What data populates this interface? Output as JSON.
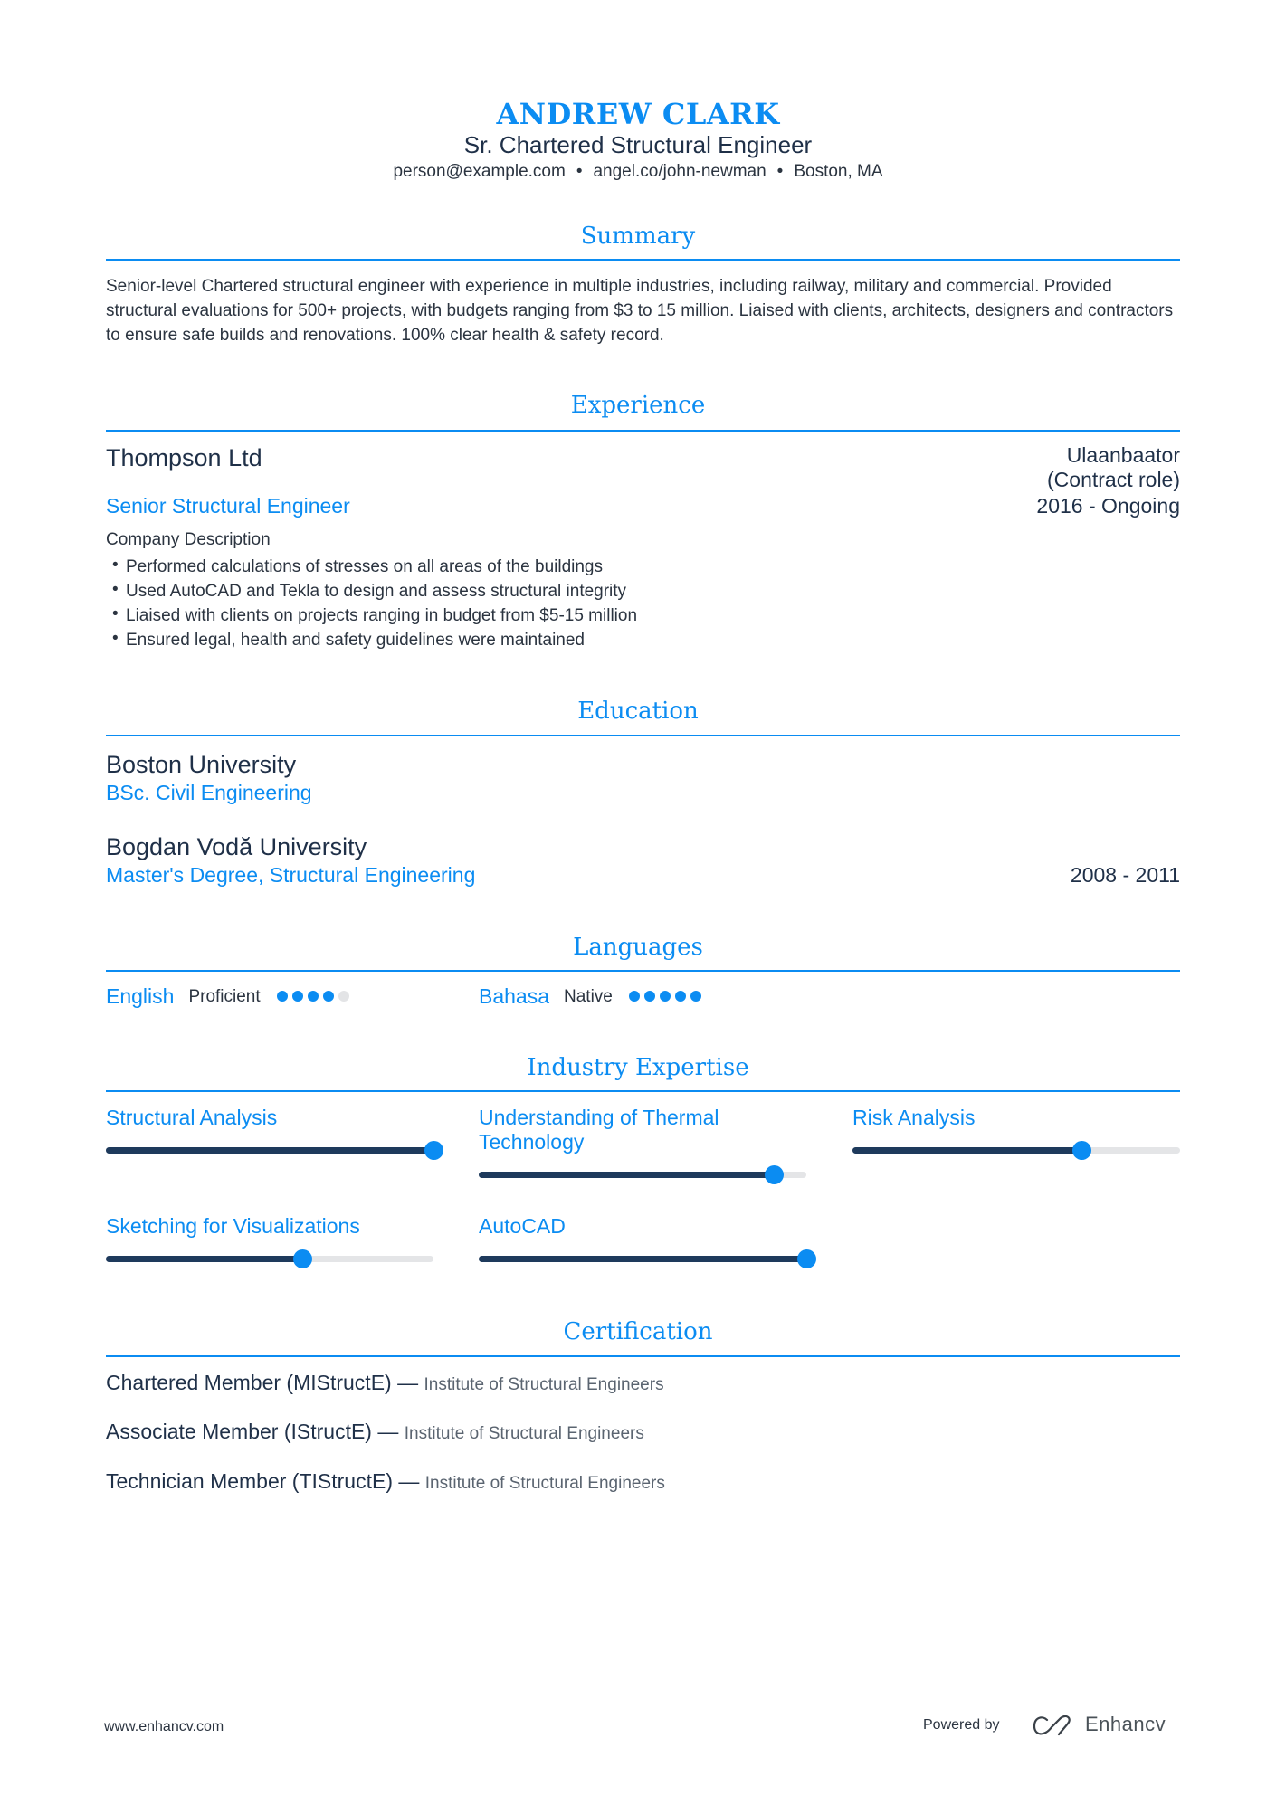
{
  "header": {
    "name": "ANDREW CLARK",
    "title": "Sr. Chartered Structural Engineer",
    "contact": [
      "person@example.com",
      "angel.co/john-newman",
      "Boston, MA"
    ],
    "separator": "•"
  },
  "summary": {
    "heading": "Summary",
    "text": "Senior-level Chartered structural engineer with experience in multiple industries, including railway, military and commercial. Provided structural evaluations for 500+ projects, with budgets ranging from $3 to 15 million. Liaised with clients, architects, designers and contractors to ensure safe builds and renovations. 100% clear health & safety record."
  },
  "experience": {
    "heading": "Experience",
    "items": [
      {
        "company": "Thompson Ltd",
        "location": "Ulaanbaator",
        "location_note": "(Contract role)",
        "role": "Senior Structural Engineer",
        "dates": "2016 - Ongoing",
        "description": "Company Description",
        "bullets": [
          "Performed calculations of stresses on all areas of the buildings",
          "Used AutoCAD and Tekla to design and assess structural integrity",
          "Liaised with clients on projects ranging in budget from $5-15 million",
          "Ensured legal, health and safety guidelines were maintained"
        ]
      }
    ]
  },
  "education": {
    "heading": "Education",
    "items": [
      {
        "school": "Boston University",
        "degree": "BSc. Civil Engineering",
        "dates": ""
      },
      {
        "school": "Bogdan Vodă University",
        "degree": "Master's Degree, Structural Engineering",
        "dates": "2008 - 2011"
      }
    ]
  },
  "languages": {
    "heading": "Languages",
    "items": [
      {
        "name": "English",
        "level": "Proficient",
        "rating": 4,
        "max": 5
      },
      {
        "name": "Bahasa",
        "level": "Native",
        "rating": 5,
        "max": 5
      }
    ]
  },
  "expertise": {
    "heading": "Industry Expertise",
    "items": [
      {
        "name": "Structural Analysis",
        "level": 1.0
      },
      {
        "name": "Understanding of Thermal Technology",
        "level": 0.9
      },
      {
        "name": "Risk Analysis",
        "level": 0.7
      },
      {
        "name": "Sketching for Visualizations",
        "level": 0.6
      },
      {
        "name": "AutoCAD",
        "level": 1.0
      }
    ]
  },
  "certification": {
    "heading": "Certification",
    "dash": "—",
    "items": [
      {
        "title": "Chartered Member (MIStructE)",
        "issuer": "Institute of Structural Engineers"
      },
      {
        "title": "Associate Member (IStructE)",
        "issuer": "Institute of Structural Engineers"
      },
      {
        "title": "Technician Member (TIStructE)",
        "issuer": "Institute of Structural Engineers"
      }
    ]
  },
  "footer": {
    "website": "www.enhancv.com",
    "powered_by": "Powered by",
    "brand": "Enhancv"
  },
  "colors": {
    "accent": "#0b8cf2",
    "bar": "#1e3a5c",
    "track": "#e4e5e7",
    "text": "#1f3048"
  }
}
